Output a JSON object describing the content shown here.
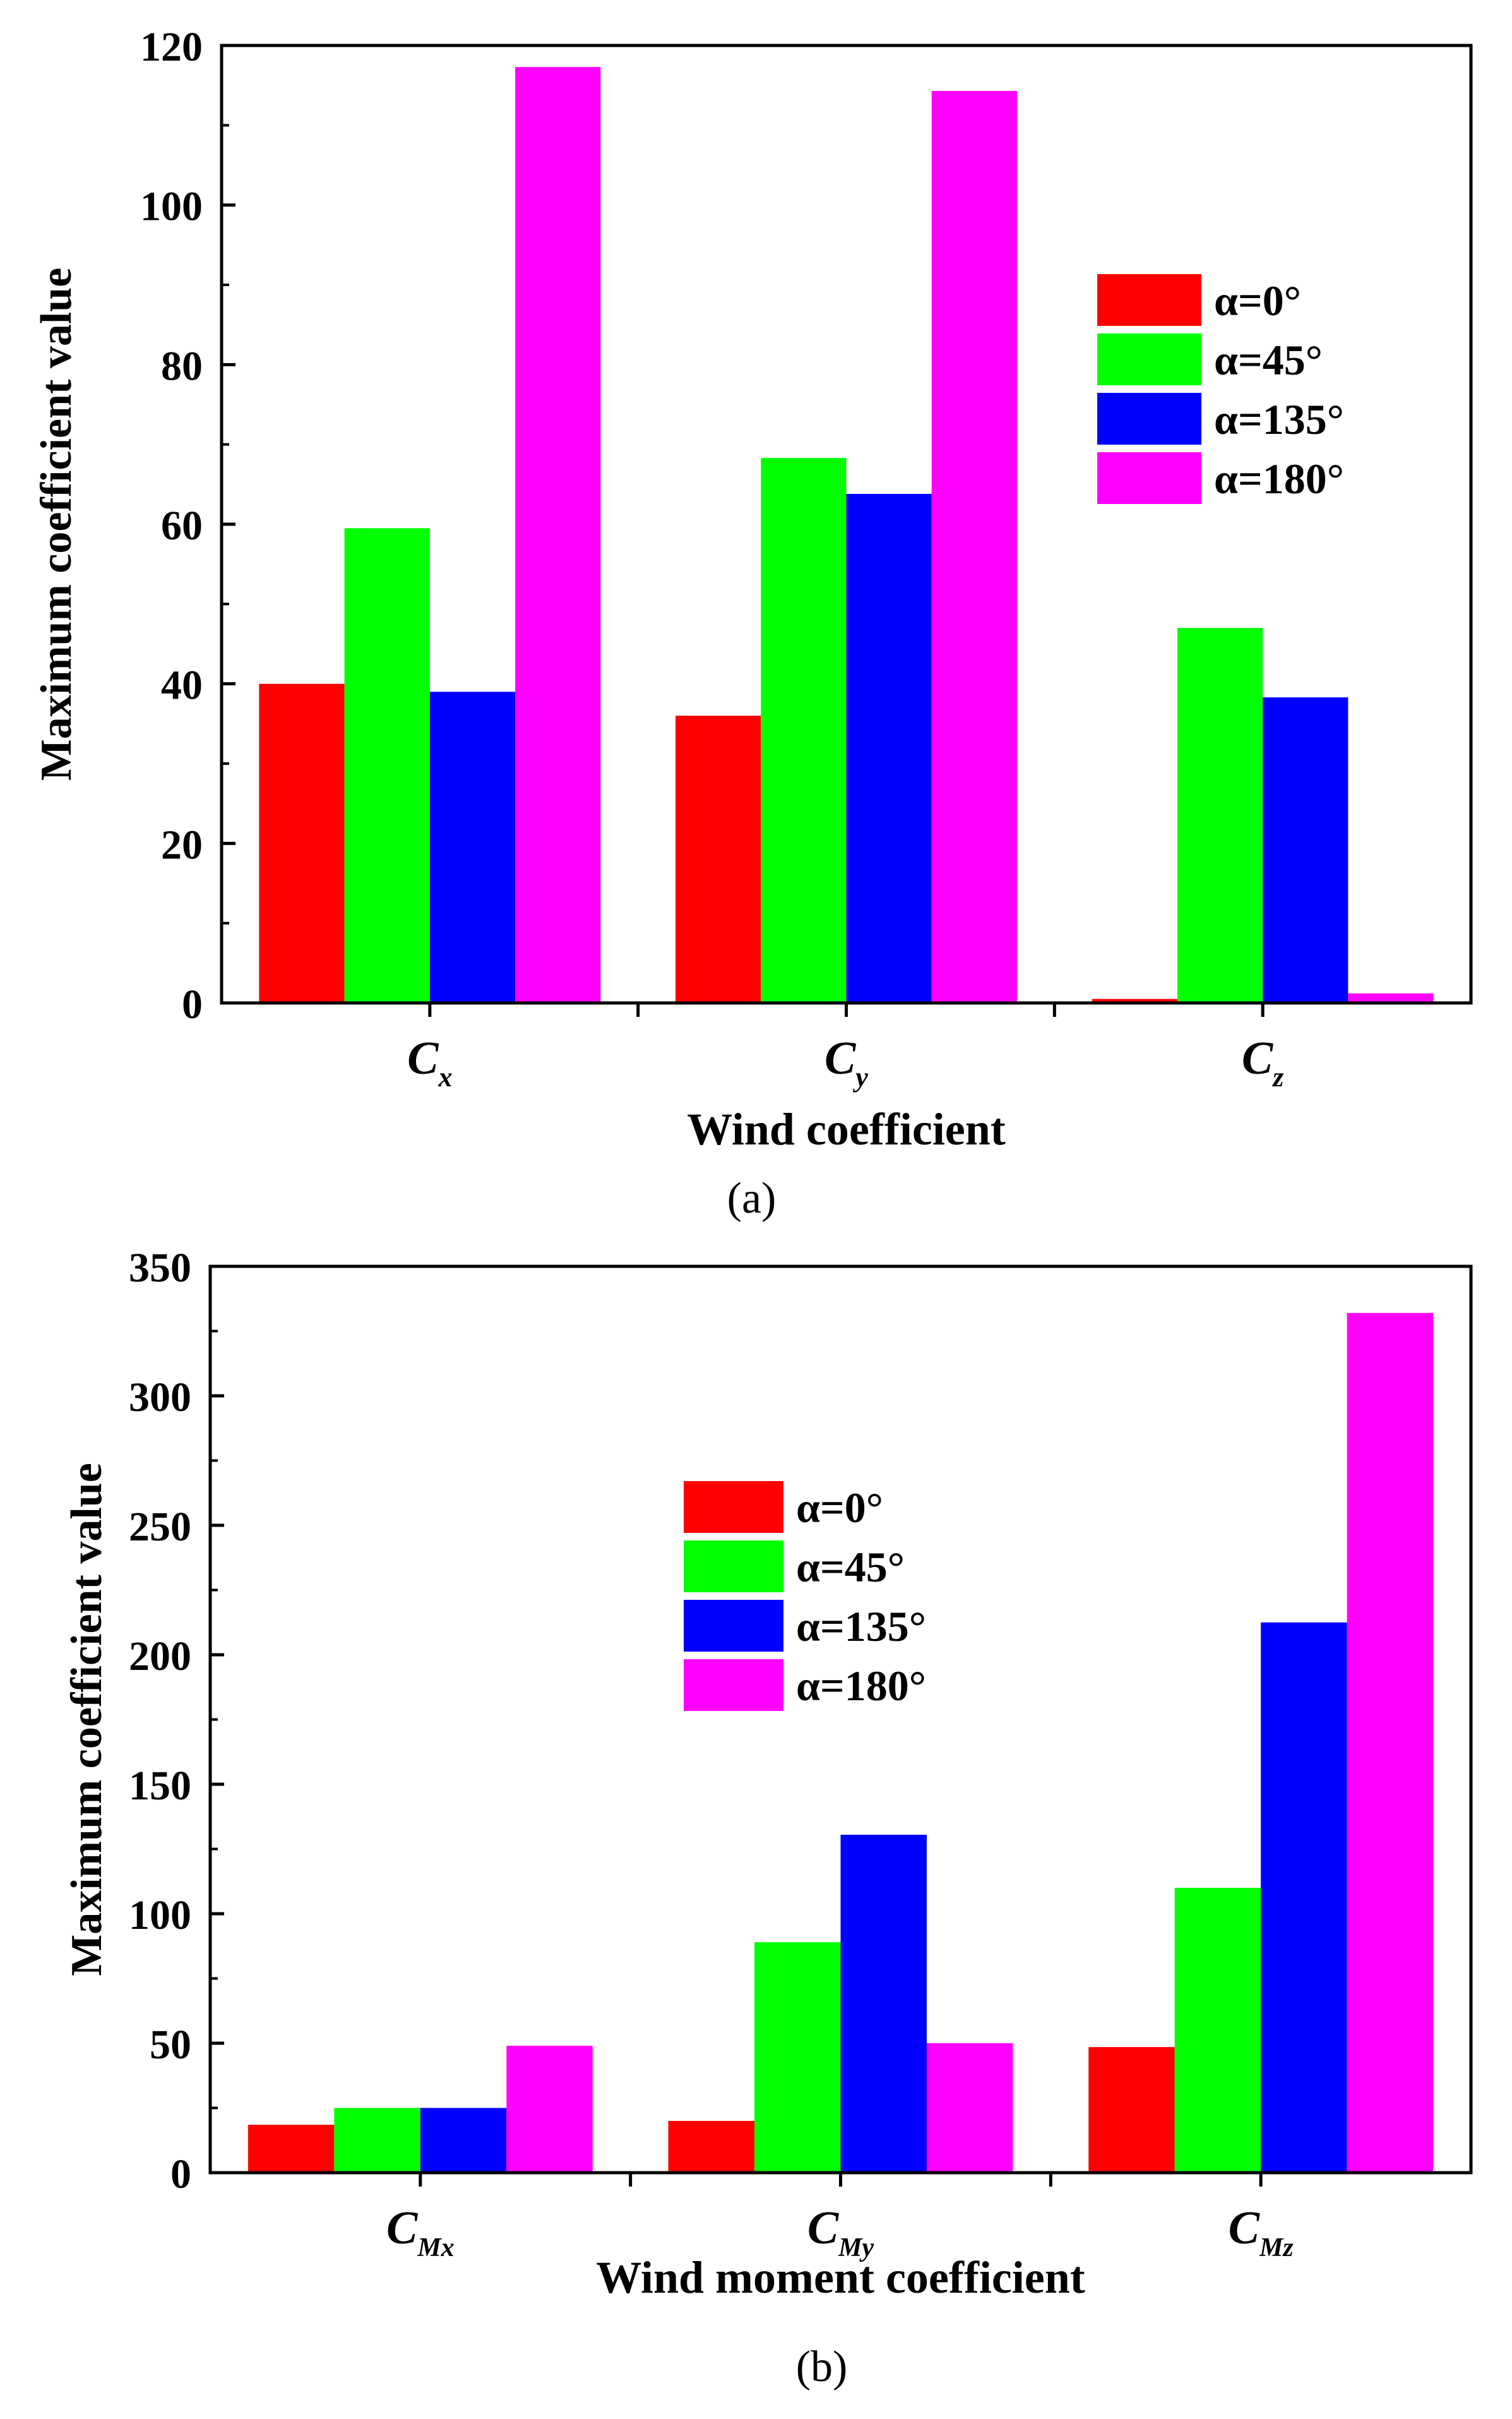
{
  "chart_data": [
    {
      "type": "bar",
      "panel_label": "(a)",
      "xlabel": "Wind coefficient",
      "ylabel": "Maximum coefficient value",
      "ylim": [
        0,
        120
      ],
      "yticks": [
        "0",
        "20",
        "40",
        "60",
        "80",
        "100",
        "120"
      ],
      "categories": [
        {
          "main": "C",
          "sub": "x"
        },
        {
          "main": "C",
          "sub": "y"
        },
        {
          "main": "C",
          "sub": "z"
        }
      ],
      "legend_position": "center-right",
      "series": [
        {
          "name": "α=0°",
          "values": [
            40,
            36,
            0.5
          ]
        },
        {
          "name": "α=45°",
          "values": [
            59.5,
            68.3,
            47
          ]
        },
        {
          "name": "α=135°",
          "values": [
            39,
            63.8,
            38.3
          ]
        },
        {
          "name": "α=180°",
          "values": [
            117.3,
            114.3,
            1.2
          ]
        }
      ]
    },
    {
      "type": "bar",
      "panel_label": "(b)",
      "xlabel": "Wind moment coefficient",
      "ylabel": "Maximum coefficient value",
      "ylim": [
        0,
        350
      ],
      "yticks": [
        "0",
        "50",
        "100",
        "150",
        "200",
        "250",
        "300",
        "350"
      ],
      "categories": [
        {
          "main": "C",
          "sub": "Mx"
        },
        {
          "main": "C",
          "sub": "My"
        },
        {
          "main": "C",
          "sub": "Mz"
        }
      ],
      "legend_position": "upper-center",
      "series": [
        {
          "name": "α=0°",
          "values": [
            18.5,
            20,
            48.5
          ]
        },
        {
          "name": "α=45°",
          "values": [
            25,
            89,
            110
          ]
        },
        {
          "name": "α=135°",
          "values": [
            25,
            130.5,
            212.5
          ]
        },
        {
          "name": "α=180°",
          "values": [
            49,
            50,
            332
          ]
        }
      ]
    }
  ],
  "colors": {
    "alpha_0": "#ff0000",
    "alpha_45": "#00ff00",
    "alpha_135": "#0000ff",
    "alpha_180": "#ff00ff"
  }
}
